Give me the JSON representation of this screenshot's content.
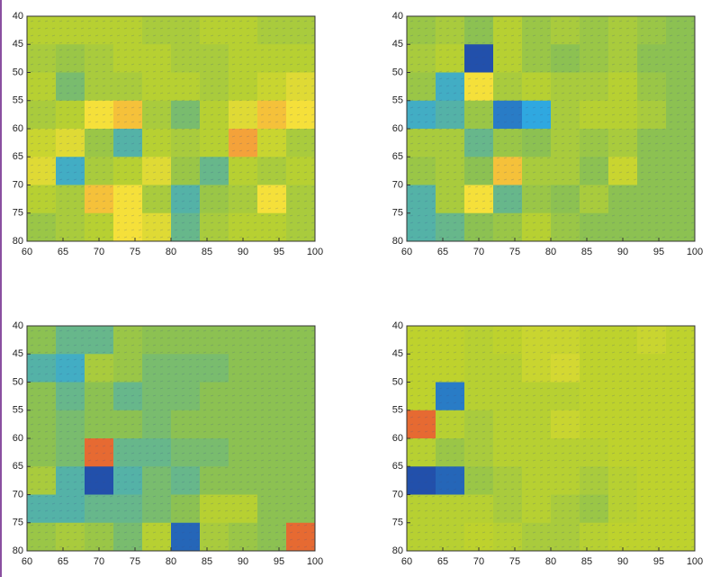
{
  "chart_data": [
    {
      "type": "heatmap",
      "xlim": [
        60,
        100
      ],
      "ylim": [
        80,
        40
      ],
      "xticks": [
        60,
        65,
        70,
        75,
        80,
        85,
        90,
        95,
        100
      ],
      "yticks": [
        40,
        45,
        50,
        55,
        60,
        65,
        70,
        75,
        80
      ],
      "clim": [
        -1,
        1
      ],
      "values": [
        [
          0.3,
          0.3,
          0.3,
          0.3,
          0.2,
          0.2,
          0.3,
          0.3,
          0.2,
          0.2
        ],
        [
          0.2,
          0.1,
          0.2,
          0.3,
          0.3,
          0.2,
          0.2,
          0.3,
          0.3,
          0.3
        ],
        [
          0.3,
          -0.1,
          0.2,
          0.2,
          0.3,
          0.3,
          0.2,
          0.3,
          0.4,
          0.5
        ],
        [
          0.2,
          0.3,
          0.6,
          0.7,
          0.2,
          -0.1,
          0.3,
          0.5,
          0.7,
          0.6
        ],
        [
          0.4,
          0.5,
          0.1,
          -0.3,
          0.3,
          0.2,
          0.3,
          0.8,
          0.4,
          0.2
        ],
        [
          0.5,
          -0.4,
          0.2,
          0.3,
          0.5,
          0.1,
          -0.2,
          0.3,
          0.2,
          0.3
        ],
        [
          0.3,
          0.2,
          0.7,
          0.6,
          0.2,
          -0.3,
          0.1,
          0.2,
          0.6,
          0.2
        ],
        [
          0.1,
          0.2,
          0.3,
          0.6,
          0.5,
          -0.2,
          0.2,
          0.3,
          0.3,
          0.2
        ]
      ]
    },
    {
      "type": "heatmap",
      "xlim": [
        60,
        100
      ],
      "ylim": [
        80,
        40
      ],
      "xticks": [
        60,
        65,
        70,
        75,
        80,
        85,
        90,
        95,
        100
      ],
      "yticks": [
        40,
        45,
        50,
        55,
        60,
        65,
        70,
        75,
        80
      ],
      "clim": [
        -1,
        1
      ],
      "values": [
        [
          0.1,
          0.2,
          0.0,
          0.3,
          0.1,
          0.2,
          0.1,
          0.2,
          0.1,
          0.0
        ],
        [
          0.2,
          0.3,
          -0.9,
          0.3,
          0.1,
          0.0,
          0.1,
          0.2,
          0.0,
          0.0
        ],
        [
          0.1,
          -0.4,
          0.6,
          0.2,
          0.3,
          0.2,
          0.2,
          0.3,
          0.1,
          0.0
        ],
        [
          -0.4,
          -0.3,
          0.1,
          -0.7,
          -0.5,
          0.2,
          0.3,
          0.3,
          0.2,
          0.0
        ],
        [
          0.2,
          0.2,
          -0.2,
          0.1,
          0.0,
          0.2,
          0.1,
          0.2,
          0.0,
          0.0
        ],
        [
          0.1,
          0.2,
          0.0,
          0.7,
          0.2,
          0.2,
          0.0,
          0.4,
          0.0,
          0.0
        ],
        [
          -0.3,
          0.2,
          0.6,
          -0.2,
          0.1,
          0.0,
          0.2,
          0.0,
          0.0,
          0.0
        ],
        [
          -0.3,
          -0.2,
          0.0,
          0.1,
          0.3,
          0.1,
          0.0,
          0.0,
          0.0,
          0.0
        ]
      ]
    },
    {
      "type": "heatmap",
      "xlim": [
        60,
        100
      ],
      "ylim": [
        80,
        40
      ],
      "xticks": [
        60,
        65,
        70,
        75,
        80,
        85,
        90,
        95,
        100
      ],
      "yticks": [
        40,
        45,
        50,
        55,
        60,
        65,
        70,
        75,
        80
      ],
      "clim": [
        -1,
        1
      ],
      "values": [
        [
          0.0,
          -0.2,
          -0.2,
          0.1,
          0.0,
          0.0,
          0.0,
          0.0,
          0.0,
          0.0
        ],
        [
          -0.3,
          -0.4,
          0.2,
          0.1,
          -0.1,
          -0.1,
          -0.1,
          0.0,
          0.0,
          0.0
        ],
        [
          0.0,
          -0.2,
          0.0,
          -0.2,
          -0.1,
          -0.1,
          0.0,
          0.0,
          0.0,
          0.0
        ],
        [
          0.0,
          -0.1,
          0.0,
          0.0,
          -0.1,
          0.0,
          0.0,
          0.0,
          0.0,
          0.0
        ],
        [
          0.0,
          -0.1,
          0.9,
          -0.2,
          -0.2,
          -0.1,
          -0.1,
          0.0,
          0.0,
          0.0
        ],
        [
          0.2,
          -0.3,
          -0.9,
          -0.3,
          -0.1,
          -0.2,
          0.0,
          0.0,
          0.0,
          0.0
        ],
        [
          -0.3,
          -0.3,
          -0.2,
          -0.2,
          -0.1,
          0.0,
          0.3,
          0.3,
          0.0,
          0.0
        ],
        [
          0.1,
          0.2,
          0.1,
          -0.1,
          0.3,
          -0.8,
          0.2,
          0.1,
          0.0,
          0.9
        ]
      ]
    },
    {
      "type": "heatmap",
      "xlim": [
        60,
        100
      ],
      "ylim": [
        80,
        40
      ],
      "xticks": [
        60,
        65,
        70,
        75,
        80,
        85,
        90,
        95,
        100
      ],
      "yticks": [
        40,
        45,
        50,
        55,
        60,
        65,
        70,
        75,
        80
      ],
      "clim": [
        -1,
        1
      ],
      "values": [
        [
          0.35,
          0.35,
          0.3,
          0.35,
          0.4,
          0.4,
          0.35,
          0.35,
          0.4,
          0.35
        ],
        [
          0.35,
          0.35,
          0.3,
          0.3,
          0.4,
          0.45,
          0.35,
          0.35,
          0.35,
          0.35
        ],
        [
          0.35,
          -0.7,
          0.3,
          0.3,
          0.3,
          0.3,
          0.35,
          0.35,
          0.35,
          0.35
        ],
        [
          0.9,
          0.3,
          0.2,
          0.3,
          0.3,
          0.4,
          0.35,
          0.35,
          0.35,
          0.35
        ],
        [
          0.3,
          0.1,
          0.2,
          0.3,
          0.3,
          0.3,
          0.3,
          0.35,
          0.35,
          0.35
        ],
        [
          -0.9,
          -0.8,
          0.1,
          0.2,
          0.3,
          0.3,
          0.2,
          0.3,
          0.35,
          0.35
        ],
        [
          0.3,
          0.3,
          0.3,
          0.2,
          0.3,
          0.2,
          0.1,
          0.3,
          0.35,
          0.35
        ],
        [
          0.3,
          0.3,
          0.35,
          0.3,
          0.2,
          0.2,
          0.3,
          0.35,
          0.35,
          0.35
        ]
      ]
    }
  ]
}
